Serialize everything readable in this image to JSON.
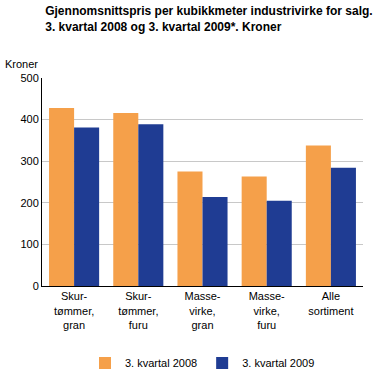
{
  "chart_data": {
    "type": "bar",
    "title": "Gjennomsnittspris per kubikkmeter industrivirke for salg.\n3. kvartal 2008 og 3. kvartal 2009*. Kroner",
    "ylabel": "Kroner",
    "categories": [
      "Skur-tømmer, gran",
      "Skur-tømmer, furu",
      "Masse-virke, gran",
      "Masse-virke, furu",
      "Alle sortiment"
    ],
    "series": [
      {
        "name": "3. kvartal 2008",
        "color": "#f5a04a",
        "values": [
          428,
          416,
          275,
          263,
          338
        ]
      },
      {
        "name": "3. kvartal 2009",
        "color": "#1f3c93",
        "values": [
          381,
          389,
          214,
          205,
          284
        ]
      }
    ],
    "ylim": [
      0,
      500
    ],
    "yticks": [
      0,
      100,
      200,
      300,
      400,
      500
    ],
    "grid": true,
    "legend": "bottom"
  }
}
